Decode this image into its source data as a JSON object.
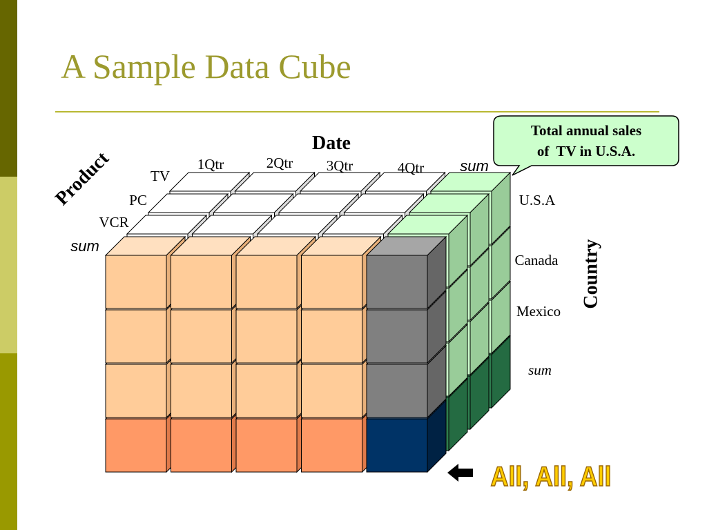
{
  "title": "A Sample Data Cube",
  "date_axis": {
    "label": "Date",
    "values": [
      "1Qtr",
      "2Qtr",
      "3Qtr",
      "4Qtr",
      "sum"
    ]
  },
  "product_axis": {
    "label": "Product",
    "values": [
      "TV",
      "PC",
      "VCR",
      "sum"
    ]
  },
  "country_axis": {
    "label": "Country",
    "values": [
      "U.S.A",
      "Canada",
      "Mexico",
      "sum"
    ]
  },
  "callout": {
    "lines": [
      "Total annual sales",
      "of  TV in U.S.A."
    ]
  },
  "all_label": "All, All, All"
}
